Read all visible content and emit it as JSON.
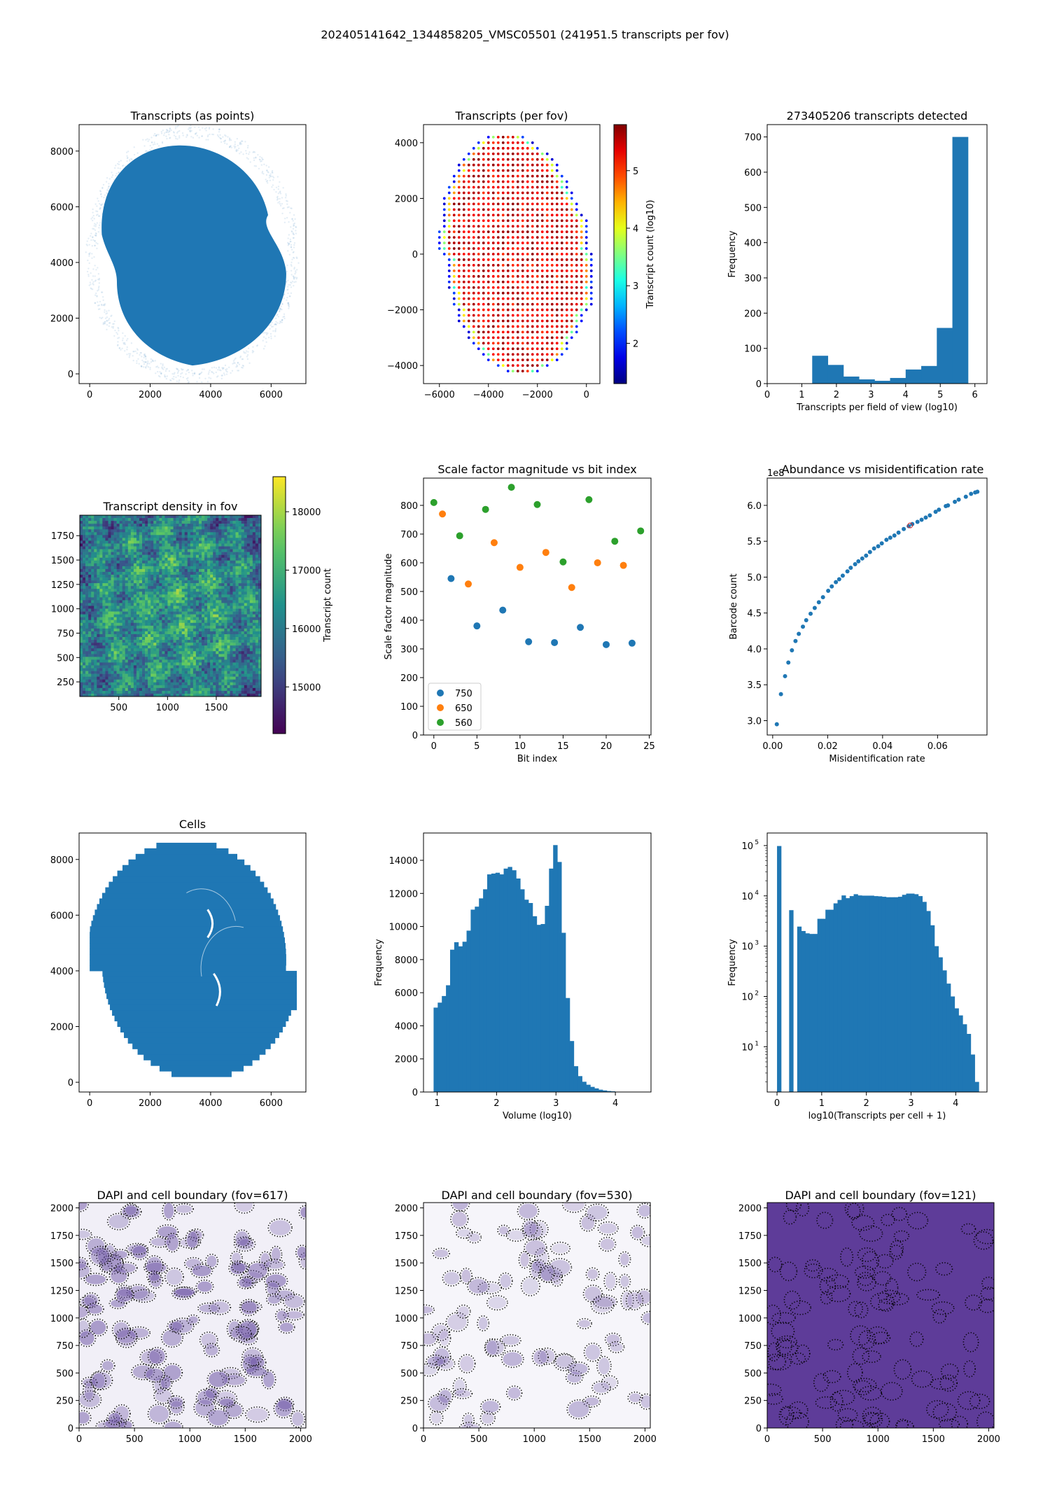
{
  "suptitle": "202405141642_1344858205_VMSC05501 (241951.5 transcripts per fov)",
  "colors": {
    "blue": "#1f77b4",
    "orange": "#ff7f0e",
    "green": "#2ca02c",
    "dapi_dark": "#4b2a8f"
  },
  "chart_data": [
    {
      "id": "transcripts-points",
      "type": "scatter",
      "title": "Transcripts (as points)",
      "xlabel": "",
      "ylabel": "",
      "xlim": [
        -350,
        7150
      ],
      "ylim": [
        -350,
        8950
      ],
      "xticks": [
        "0",
        "2000",
        "4000",
        "6000"
      ],
      "yticks": [
        "0",
        "2000",
        "4000",
        "6000",
        "8000"
      ],
      "description_shape": "dense tissue outline"
    },
    {
      "id": "transcripts-per-fov",
      "type": "scatter",
      "title": "Transcripts (per fov)",
      "xlim": [
        -6650,
        550
      ],
      "ylim": [
        -4650,
        4650
      ],
      "xticks": [
        "−6000",
        "−4000",
        "−2000",
        "0"
      ],
      "yticks": [
        "−4000",
        "−2000",
        "0",
        "2000",
        "4000"
      ],
      "colorbar": {
        "label": "Transcript count (log10)",
        "ticks": [
          "2",
          "3",
          "4",
          "5"
        ],
        "range": [
          1.3,
          5.8
        ],
        "cmap": "jet"
      }
    },
    {
      "id": "fov-histogram",
      "type": "bar",
      "title": "273405206 transcripts detected",
      "xlabel": "Transcripts per field of view (log10)",
      "ylabel": "Frequency",
      "xlim": [
        0,
        6.35
      ],
      "ylim": [
        0,
        735
      ],
      "xticks": [
        "0",
        "1",
        "2",
        "3",
        "4",
        "5",
        "6"
      ],
      "yticks": [
        "0",
        "100",
        "200",
        "300",
        "400",
        "500",
        "600",
        "700"
      ],
      "bin_edges": [
        1.3,
        1.75,
        2.2,
        2.65,
        3.1,
        3.55,
        4.0,
        4.45,
        4.9,
        5.35,
        5.8
      ],
      "values": [
        79,
        53,
        20,
        12,
        8,
        16,
        40,
        50,
        158,
        700
      ]
    },
    {
      "id": "density-in-fov",
      "type": "heatmap",
      "title": "Transcript density in fov",
      "xlim": [
        100,
        1960
      ],
      "ylim": [
        100,
        1960
      ],
      "xticks": [
        "500",
        "1000",
        "1500"
      ],
      "yticks": [
        "250",
        "500",
        "750",
        "1000",
        "1250",
        "1500",
        "1750"
      ],
      "colorbar": {
        "label": "Transcript count",
        "ticks": [
          "15000",
          "16000",
          "17000",
          "18000"
        ],
        "range": [
          14200,
          18600
        ],
        "cmap": "viridis"
      }
    },
    {
      "id": "scale-factor",
      "type": "scatter",
      "title": "Scale factor magnitude vs bit index",
      "xlabel": "Bit index",
      "ylabel": "Scale factor magnitude",
      "xlim": [
        -1.2,
        25.2
      ],
      "ylim": [
        0,
        895
      ],
      "xticks": [
        "0",
        "5",
        "10",
        "15",
        "20",
        "25"
      ],
      "yticks": [
        "0",
        "100",
        "200",
        "300",
        "400",
        "500",
        "600",
        "700",
        "800"
      ],
      "legend": "lower-left",
      "series": [
        {
          "name": "750",
          "x": [
            2,
            5,
            8,
            11,
            14,
            17,
            20,
            23
          ],
          "y": [
            545,
            380,
            435,
            325,
            322,
            375,
            315,
            320
          ]
        },
        {
          "name": "650",
          "x": [
            1,
            4,
            7,
            10,
            13,
            16,
            19,
            22
          ],
          "y": [
            770,
            526,
            670,
            584,
            636,
            514,
            600,
            591
          ]
        },
        {
          "name": "560",
          "x": [
            0,
            3,
            6,
            9,
            12,
            15,
            18,
            21,
            24
          ],
          "y": [
            810,
            694,
            786,
            863,
            803,
            603,
            820,
            675,
            711
          ]
        }
      ]
    },
    {
      "id": "abundance-vs-misid",
      "type": "scatter",
      "title": "Abundance vs misidentification rate",
      "xlabel": "Misidentification rate",
      "ylabel": "Barcode count",
      "offset_label": "1e8",
      "xlim": [
        -0.002,
        0.078
      ],
      "ylim": [
        2.8,
        6.38
      ],
      "xticks": [
        "0.00",
        "0.02",
        "0.04",
        "0.06"
      ],
      "yticks": [
        "3.0",
        "3.5",
        "4.0",
        "4.5",
        "5.0",
        "5.5",
        "6.0"
      ],
      "x": [
        0.0015,
        0.003,
        0.0045,
        0.0057,
        0.007,
        0.0083,
        0.0095,
        0.011,
        0.0122,
        0.0138,
        0.0153,
        0.0168,
        0.0183,
        0.0202,
        0.0215,
        0.023,
        0.0242,
        0.0255,
        0.0272,
        0.0284,
        0.03,
        0.0312,
        0.0326,
        0.034,
        0.0354,
        0.0369,
        0.0384,
        0.0397,
        0.0414,
        0.0428,
        0.0443,
        0.0458,
        0.0477,
        0.0495,
        0.0508,
        0.0527,
        0.0542,
        0.0557,
        0.0572,
        0.0593,
        0.0605,
        0.063,
        0.0638,
        0.0663,
        0.0677,
        0.0703,
        0.0722,
        0.0737,
        0.0745
      ],
      "y": [
        2.95,
        3.37,
        3.62,
        3.81,
        3.98,
        4.11,
        4.21,
        4.31,
        4.4,
        4.49,
        4.57,
        4.65,
        4.72,
        4.81,
        4.87,
        4.93,
        4.97,
        5.02,
        5.08,
        5.13,
        5.18,
        5.22,
        5.26,
        5.3,
        5.35,
        5.4,
        5.43,
        5.47,
        5.52,
        5.55,
        5.58,
        5.62,
        5.67,
        5.71,
        5.74,
        5.77,
        5.8,
        5.83,
        5.86,
        5.91,
        5.94,
        5.99,
        6.0,
        6.05,
        6.08,
        6.12,
        6.16,
        6.18,
        6.19
      ],
      "highlight": {
        "x": 0.05,
        "y": 5.72,
        "color": "#d62728"
      }
    },
    {
      "id": "cells",
      "type": "scatter",
      "title": "Cells",
      "xlim": [
        -350,
        7150
      ],
      "ylim": [
        -350,
        8950
      ],
      "xticks": [
        "0",
        "2000",
        "4000",
        "6000"
      ],
      "yticks": [
        "0",
        "2000",
        "4000",
        "6000",
        "8000"
      ]
    },
    {
      "id": "volume-histogram",
      "type": "bar",
      "title": "",
      "xlabel": "Volume (log10)",
      "ylabel": "Frequency",
      "xlim": [
        0.77,
        4.6
      ],
      "ylim": [
        0,
        15650
      ],
      "xticks": [
        "1",
        "2",
        "3",
        "4"
      ],
      "yticks": [
        "0",
        "2000",
        "4000",
        "6000",
        "8000",
        "10000",
        "12000",
        "14000"
      ],
      "bin_start": 0.94,
      "bin_width": 0.0694,
      "values": [
        5100,
        5400,
        5800,
        6450,
        8600,
        9050,
        8800,
        9080,
        9750,
        11020,
        11200,
        11700,
        12250,
        13150,
        13200,
        13250,
        13150,
        13500,
        13600,
        13400,
        12900,
        12250,
        11620,
        11420,
        10620,
        10100,
        10150,
        11250,
        13500,
        14920,
        13900,
        9620,
        5680,
        3080,
        1560,
        960,
        620,
        440,
        310,
        220,
        140,
        95,
        60,
        40,
        20,
        10,
        6,
        3,
        2,
        1
      ]
    },
    {
      "id": "transcripts-per-cell",
      "type": "bar",
      "title": "",
      "xlabel": "log10(Transcripts per cell + 1)",
      "ylabel": "Frequency",
      "yscale": "log",
      "xlim": [
        -0.22,
        4.7
      ],
      "ylim_log10": [
        0.1,
        5.25
      ],
      "xticks": [
        "0",
        "1",
        "2",
        "3",
        "4"
      ],
      "yticks": [
        "10^1",
        "10^2",
        "10^3",
        "10^4",
        "10^5"
      ],
      "bin_start": 0,
      "bin_width": 0.0903,
      "values": [
        98000,
        0,
        0,
        5200,
        0,
        2450,
        2000,
        1800,
        1750,
        1750,
        3500,
        3500,
        5300,
        5300,
        7100,
        8300,
        10200,
        9000,
        9900,
        10800,
        10200,
        10100,
        10100,
        10100,
        9900,
        9800,
        9600,
        9400,
        9400,
        9400,
        9600,
        10500,
        11100,
        11100,
        10800,
        9900,
        7600,
        5000,
        2600,
        1000,
        600,
        330,
        180,
        100,
        58,
        42,
        28,
        18,
        7,
        2
      ]
    },
    {
      "id": "dapi-617",
      "type": "heatmap",
      "title": "DAPI and cell boundary (fov=617)",
      "xlim": [
        0,
        2048
      ],
      "ylim": [
        0,
        2048
      ],
      "xticks": [
        "0",
        "500",
        "1000",
        "1500",
        "2000"
      ],
      "yticks": [
        "0",
        "250",
        "500",
        "750",
        "1000",
        "1250",
        "1500",
        "1750",
        "2000"
      ]
    },
    {
      "id": "dapi-530",
      "type": "heatmap",
      "title": "DAPI and cell boundary (fov=530)",
      "xlim": [
        0,
        2048
      ],
      "ylim": [
        0,
        2048
      ],
      "xticks": [
        "0",
        "500",
        "1000",
        "1500",
        "2000"
      ],
      "yticks": [
        "0",
        "250",
        "500",
        "750",
        "1000",
        "1250",
        "1500",
        "1750",
        "2000"
      ]
    },
    {
      "id": "dapi-121",
      "type": "heatmap",
      "title": "DAPI and cell boundary (fov=121)",
      "xlim": [
        0,
        2048
      ],
      "ylim": [
        0,
        2048
      ],
      "xticks": [
        "0",
        "500",
        "1000",
        "1500",
        "2000"
      ],
      "yticks": [
        "0",
        "250",
        "500",
        "750",
        "1000",
        "1250",
        "1500",
        "1750",
        "2000"
      ]
    }
  ]
}
